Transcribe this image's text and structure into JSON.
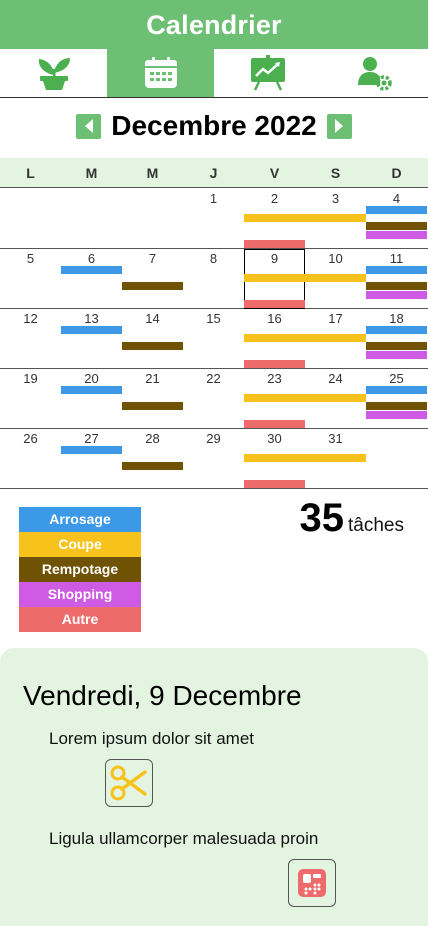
{
  "header": {
    "title": "Calendrier"
  },
  "tabs": [
    {
      "name": "plants",
      "icon": "plant-pot-icon",
      "active": false
    },
    {
      "name": "calendar",
      "icon": "calendar-icon",
      "active": true
    },
    {
      "name": "stats",
      "icon": "chart-board-icon",
      "active": false
    },
    {
      "name": "settings",
      "icon": "user-settings-icon",
      "active": false
    }
  ],
  "month": {
    "label": "Decembre 2022",
    "prev_icon": "arrow-left-icon",
    "next_icon": "arrow-right-icon"
  },
  "weekdays": [
    "L",
    "M",
    "M",
    "J",
    "V",
    "S",
    "D"
  ],
  "calendar": {
    "selected_day": 9,
    "weeks": [
      {
        "days": [
          "",
          "",
          "",
          "1",
          "2",
          "3",
          "4"
        ],
        "bars": [
          {
            "start": 4,
            "span": 2,
            "slot": 1,
            "type": "coupe"
          },
          {
            "start": 4,
            "span": 1,
            "slot": 4,
            "type": "autre"
          },
          {
            "start": 6,
            "span": 1,
            "slot": 0,
            "type": "arrosage"
          },
          {
            "start": 6,
            "span": 1,
            "slot": 2,
            "type": "rempotage"
          },
          {
            "start": 6,
            "span": 1,
            "slot": 3,
            "type": "shopping"
          }
        ]
      },
      {
        "days": [
          "5",
          "6",
          "7",
          "8",
          "9",
          "10",
          "11"
        ],
        "bars": [
          {
            "start": 1,
            "span": 1,
            "slot": 0,
            "type": "arrosage"
          },
          {
            "start": 2,
            "span": 1,
            "slot": 2,
            "type": "rempotage"
          },
          {
            "start": 4,
            "span": 2,
            "slot": 1,
            "type": "coupe"
          },
          {
            "start": 4,
            "span": 1,
            "slot": 4,
            "type": "autre"
          },
          {
            "start": 6,
            "span": 1,
            "slot": 0,
            "type": "arrosage"
          },
          {
            "start": 6,
            "span": 1,
            "slot": 2,
            "type": "rempotage"
          },
          {
            "start": 6,
            "span": 1,
            "slot": 3,
            "type": "shopping"
          }
        ]
      },
      {
        "days": [
          "12",
          "13",
          "14",
          "15",
          "16",
          "17",
          "18"
        ],
        "bars": [
          {
            "start": 1,
            "span": 1,
            "slot": 0,
            "type": "arrosage"
          },
          {
            "start": 2,
            "span": 1,
            "slot": 2,
            "type": "rempotage"
          },
          {
            "start": 4,
            "span": 2,
            "slot": 1,
            "type": "coupe"
          },
          {
            "start": 4,
            "span": 1,
            "slot": 4,
            "type": "autre"
          },
          {
            "start": 6,
            "span": 1,
            "slot": 0,
            "type": "arrosage"
          },
          {
            "start": 6,
            "span": 1,
            "slot": 2,
            "type": "rempotage"
          },
          {
            "start": 6,
            "span": 1,
            "slot": 3,
            "type": "shopping"
          }
        ]
      },
      {
        "days": [
          "19",
          "20",
          "21",
          "22",
          "23",
          "24",
          "25"
        ],
        "bars": [
          {
            "start": 1,
            "span": 1,
            "slot": 0,
            "type": "arrosage"
          },
          {
            "start": 2,
            "span": 1,
            "slot": 2,
            "type": "rempotage"
          },
          {
            "start": 4,
            "span": 2,
            "slot": 1,
            "type": "coupe"
          },
          {
            "start": 4,
            "span": 1,
            "slot": 4,
            "type": "autre"
          },
          {
            "start": 6,
            "span": 1,
            "slot": 0,
            "type": "arrosage"
          },
          {
            "start": 6,
            "span": 1,
            "slot": 2,
            "type": "rempotage"
          },
          {
            "start": 6,
            "span": 1,
            "slot": 3,
            "type": "shopping"
          }
        ]
      },
      {
        "days": [
          "26",
          "27",
          "28",
          "29",
          "30",
          "31",
          ""
        ],
        "bars": [
          {
            "start": 1,
            "span": 1,
            "slot": 0,
            "type": "arrosage"
          },
          {
            "start": 2,
            "span": 1,
            "slot": 2,
            "type": "rempotage"
          },
          {
            "start": 4,
            "span": 2,
            "slot": 1,
            "type": "coupe"
          },
          {
            "start": 4,
            "span": 1,
            "slot": 4,
            "type": "autre"
          }
        ]
      }
    ]
  },
  "legend": [
    {
      "key": "arrosage",
      "label": "Arrosage",
      "color": "#3b99e8"
    },
    {
      "key": "coupe",
      "label": "Coupe",
      "color": "#f7c21c"
    },
    {
      "key": "rempotage",
      "label": "Rempotage",
      "color": "#6f5204"
    },
    {
      "key": "shopping",
      "label": "Shopping",
      "color": "#cf5ae3"
    },
    {
      "key": "autre",
      "label": "Autre",
      "color": "#ee6b6b"
    }
  ],
  "task_count": {
    "value": "35",
    "label": "tâches"
  },
  "detail": {
    "title": "Vendredi, 9 Decembre",
    "tasks": [
      {
        "text": "Lorem ipsum dolor sit amet",
        "icon": "scissors-icon"
      },
      {
        "text": "Ligula ullamcorper malesuada proin",
        "icon": "other-task-icon"
      }
    ]
  },
  "colors": {
    "brand_green": "#6dbf73",
    "light_green": "#e3f5e1"
  }
}
